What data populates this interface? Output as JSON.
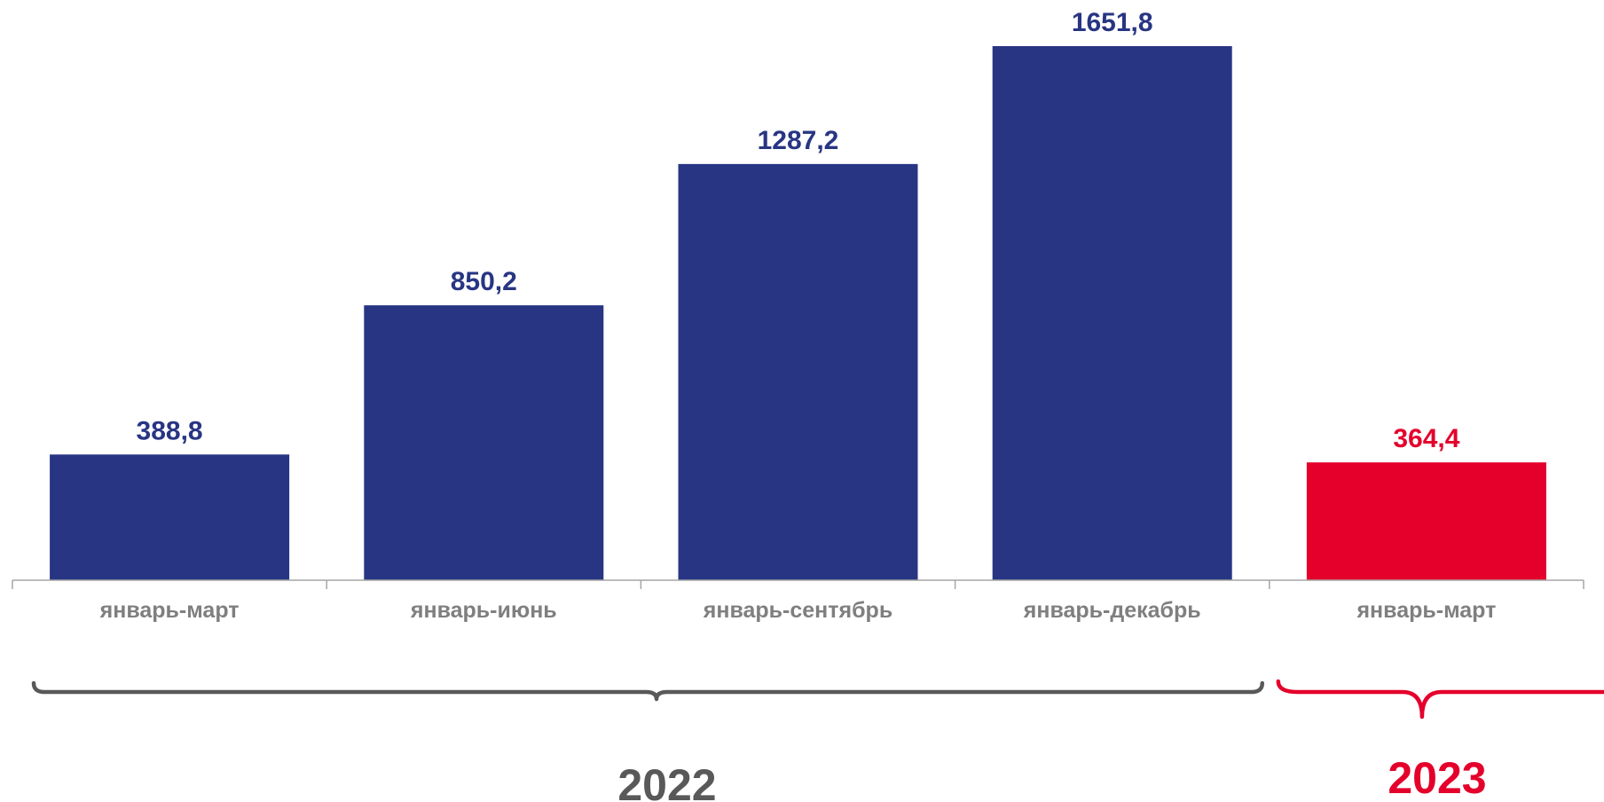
{
  "chart_data": {
    "type": "bar",
    "categories": [
      "январь-март",
      "январь-июнь",
      "январь-сентябрь",
      "январь-декабрь",
      "январь-март"
    ],
    "values": [
      388.8,
      850.2,
      1287.2,
      1651.8,
      364.4
    ],
    "value_labels": [
      "388,8",
      "850,2",
      "1287,2",
      "1651,8",
      "364,4"
    ],
    "groups": [
      {
        "label": "2022",
        "count": 4,
        "color": "#595959"
      },
      {
        "label": "2023",
        "count": 1,
        "color": "#e4002b"
      }
    ],
    "bar_colors": [
      "#283583",
      "#283583",
      "#283583",
      "#283583",
      "#e4002b"
    ],
    "ylim": [
      0,
      1700
    ],
    "grid": false,
    "legend": "none"
  }
}
